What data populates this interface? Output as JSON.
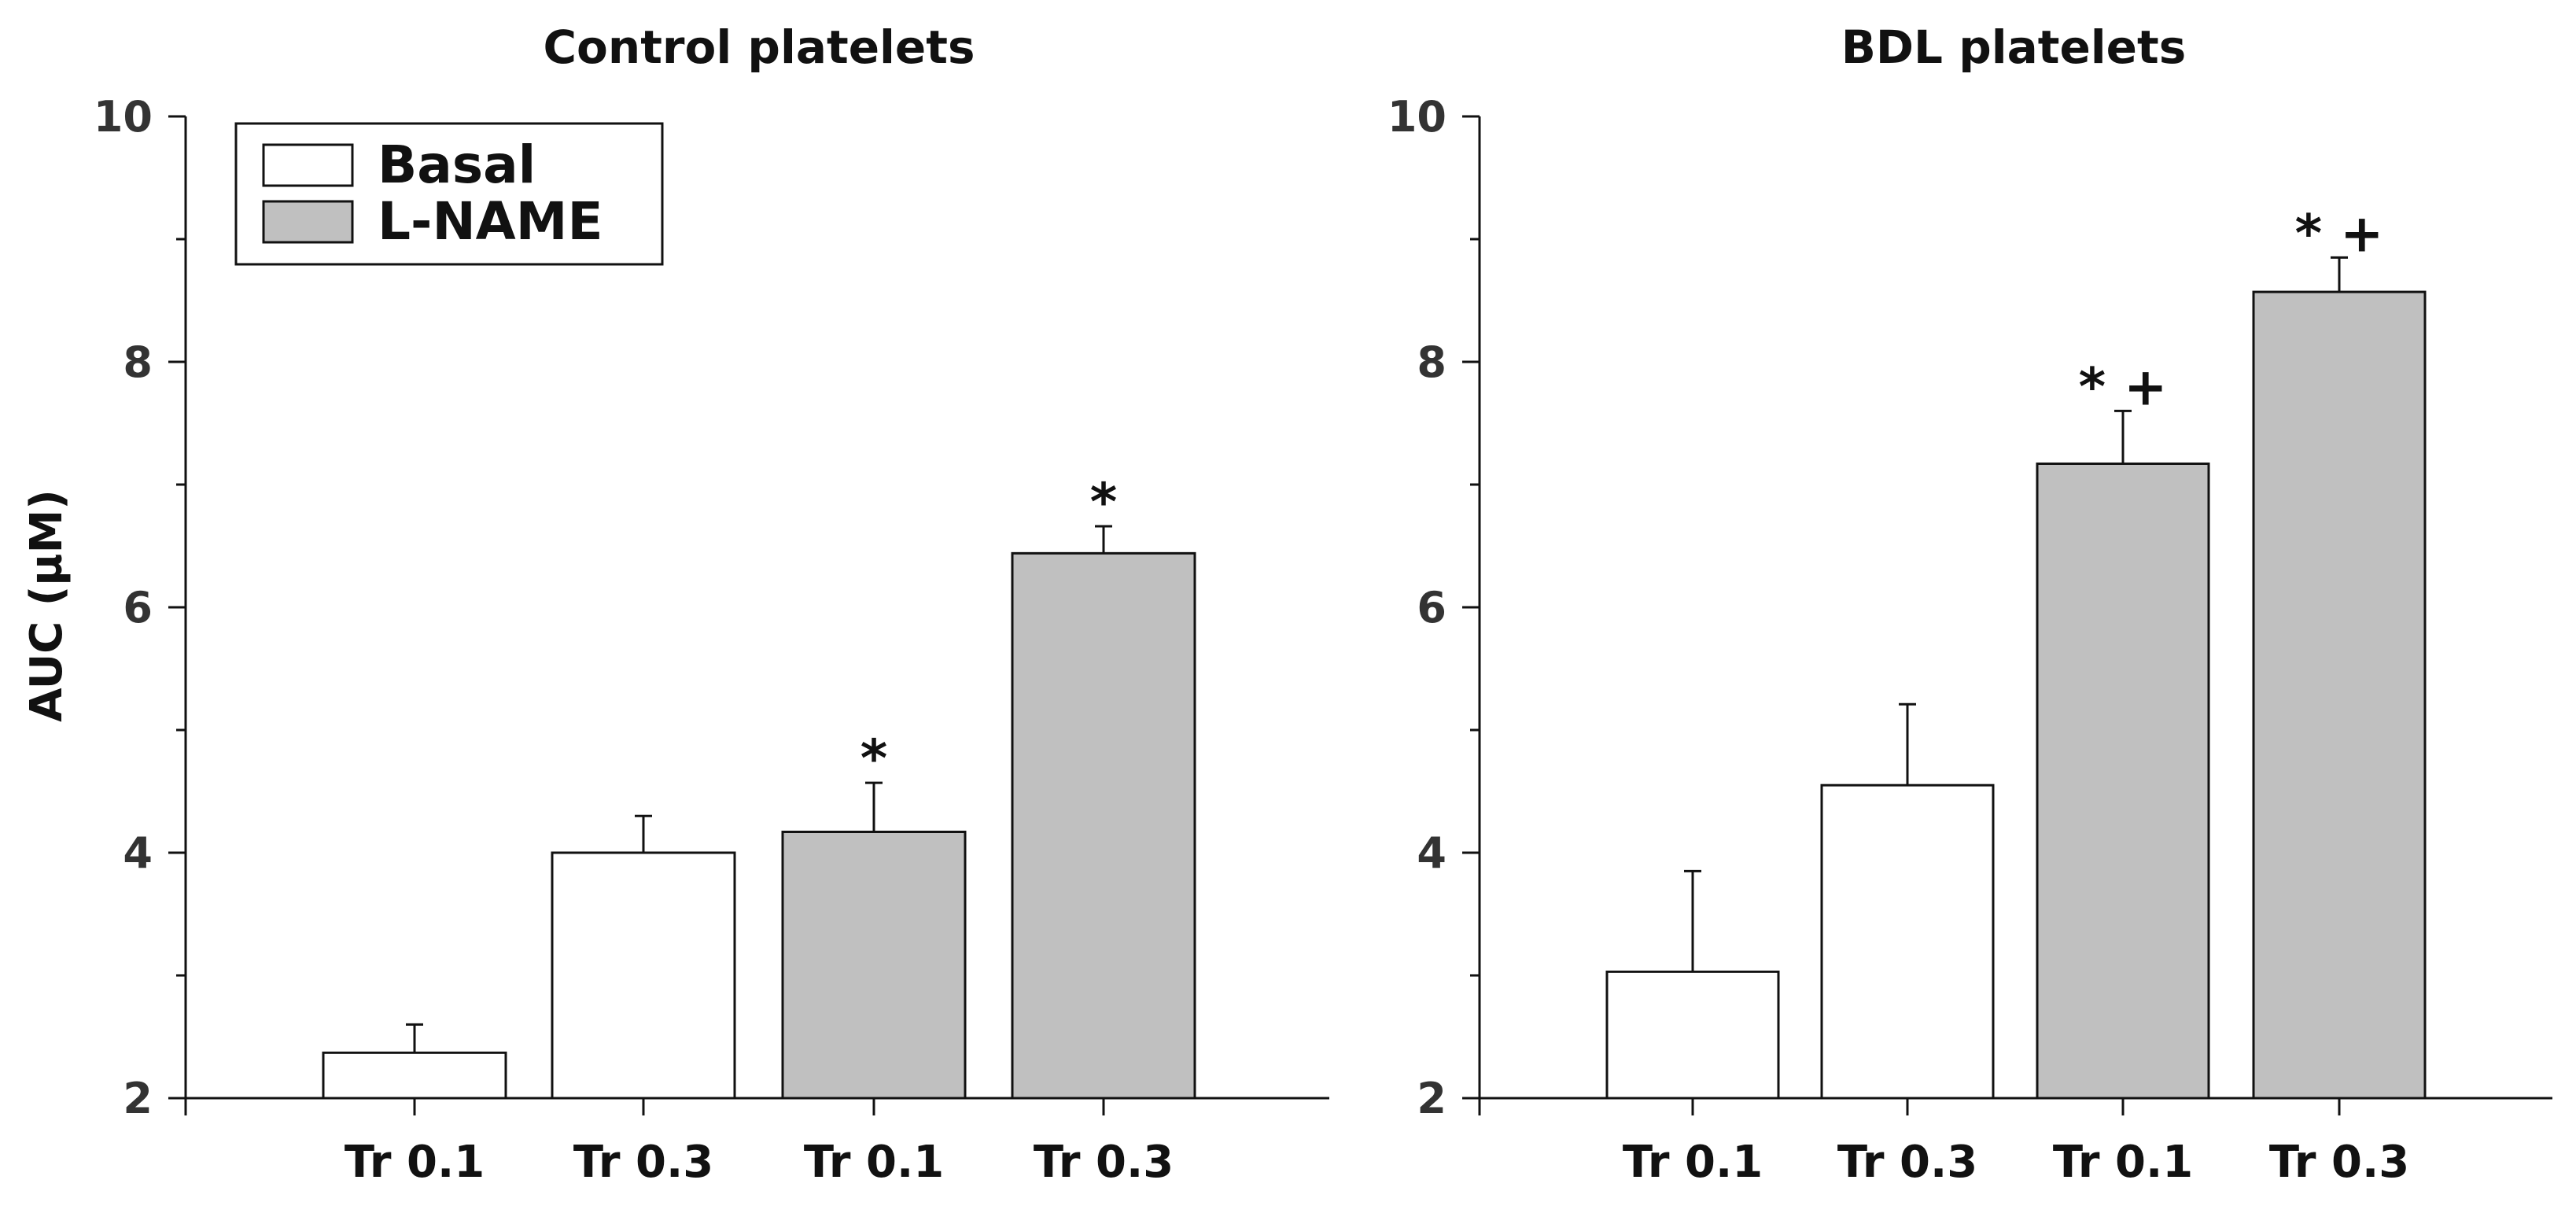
{
  "colors": {
    "basal_fill": "#ffffff",
    "lname_fill": "#c0c0c0",
    "stroke": "#111111"
  },
  "y_axis_label": "AUC (µM)",
  "legend": [
    {
      "label": "Basal",
      "color": "#ffffff"
    },
    {
      "label": "L-NAME",
      "color": "#c0c0c0"
    }
  ],
  "chart_data": [
    {
      "type": "bar",
      "title": "Control platelets",
      "ylabel": "AUC (µM)",
      "ylim": [
        2,
        10
      ],
      "yticks": [
        "2",
        "4",
        "6",
        "8",
        "10"
      ],
      "categories": [
        "Tr 0.1",
        "Tr 0.3",
        "Tr 0.1",
        "Tr 0.3"
      ],
      "groups": [
        "Basal",
        "Basal",
        "L-NAME",
        "L-NAME"
      ],
      "values": [
        2.37,
        4.0,
        4.17,
        6.44
      ],
      "errors": [
        0.23,
        0.3,
        0.4,
        0.22
      ],
      "annotations": [
        "",
        "",
        "*",
        "*"
      ]
    },
    {
      "type": "bar",
      "title": "BDL platelets",
      "ylabel": "",
      "ylim": [
        2,
        10
      ],
      "yticks": [
        "2",
        "4",
        "6",
        "8",
        "10"
      ],
      "categories": [
        "Tr 0.1",
        "Tr 0.3",
        "Tr 0.1",
        "Tr 0.3"
      ],
      "groups": [
        "Basal",
        "Basal",
        "L-NAME",
        "L-NAME"
      ],
      "values": [
        3.03,
        4.55,
        7.17,
        8.57
      ],
      "errors": [
        0.82,
        0.66,
        0.43,
        0.28
      ],
      "annotations": [
        "",
        "",
        "* +",
        "* +"
      ]
    }
  ]
}
